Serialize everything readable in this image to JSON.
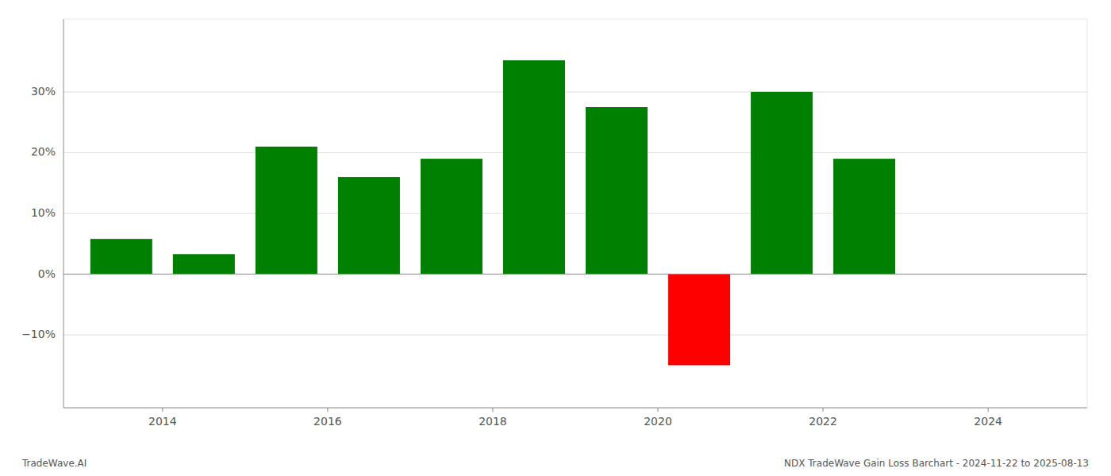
{
  "chart_data": {
    "type": "bar",
    "x": [
      2013.5,
      2014.5,
      2015.5,
      2016.5,
      2017.5,
      2018.5,
      2019.5,
      2020.5,
      2021.5,
      2022.5
    ],
    "values": [
      5.8,
      3.3,
      21.0,
      16.0,
      19.0,
      35.2,
      27.5,
      -15.0,
      30.0,
      19.0
    ],
    "colors": [
      "#008000",
      "#008000",
      "#008000",
      "#008000",
      "#008000",
      "#008000",
      "#008000",
      "#ff0000",
      "#008000",
      "#008000"
    ],
    "xlim": [
      2012.8,
      2025.2
    ],
    "xticks": [
      2014,
      2016,
      2018,
      2020,
      2022,
      2024
    ],
    "ylim": [
      -22,
      42
    ],
    "yticks": [
      {
        "value": -10,
        "label": "−10%"
      },
      {
        "value": 0,
        "label": "0%"
      },
      {
        "value": 10,
        "label": "10%"
      },
      {
        "value": 20,
        "label": "20%"
      },
      {
        "value": 30,
        "label": "30%"
      }
    ],
    "grid": true,
    "annotations": [
      "TradeWave.AI",
      "NDX TradeWave Gain Loss Barchart - 2024-11-22 to 2025-08-13"
    ]
  }
}
